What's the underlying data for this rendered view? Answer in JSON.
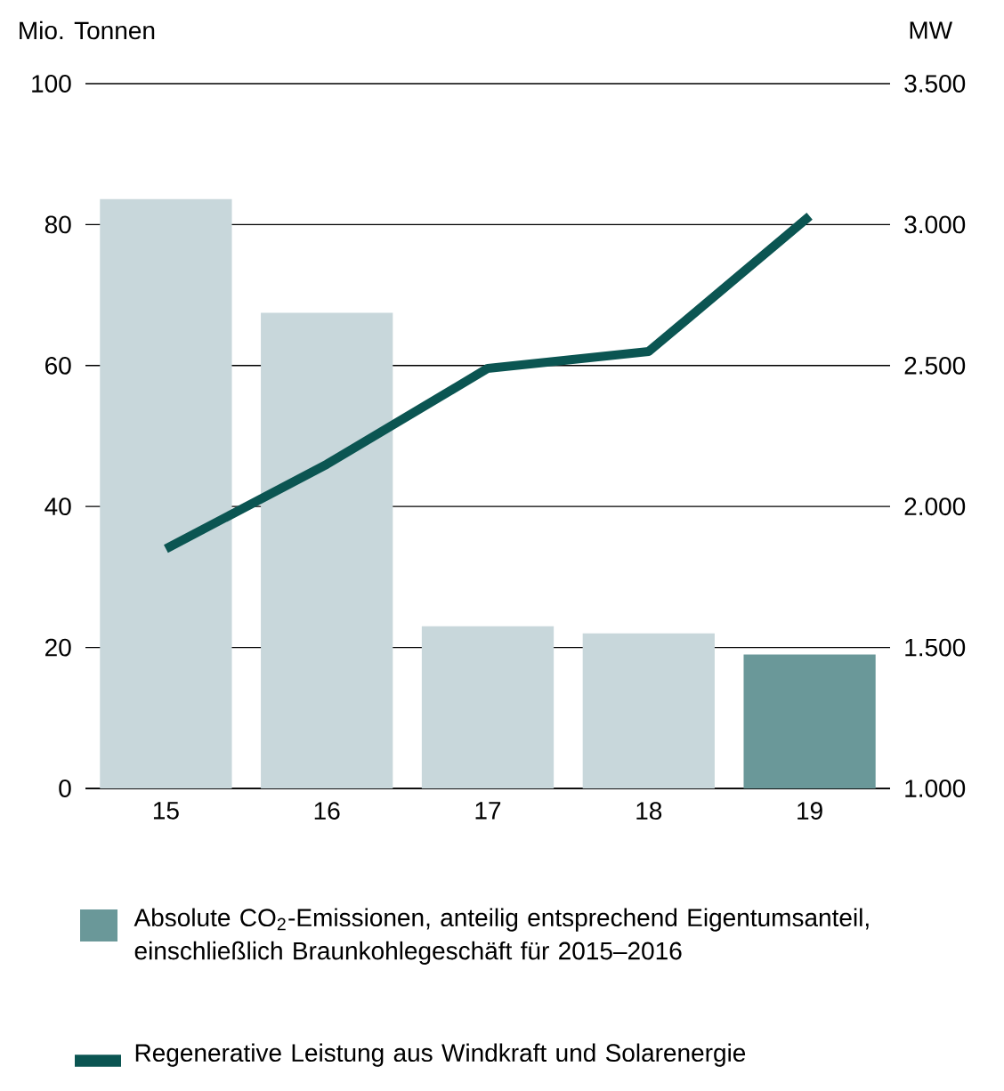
{
  "chart_data": {
    "type": "bar",
    "ylabel": "Mio. Tonnen",
    "y2label": "MW",
    "categories": [
      "15",
      "16",
      "17",
      "18",
      "19"
    ],
    "series": [
      {
        "name": "Absolute CO$_{2}$-Emissionen, anteilig entsprechend Eigentumsanteil, einschließlich Braunkohlegeschäft für 2015–2016",
        "color": "#6a9899",
        "colors": [
          "#c8d7db",
          "#c8d7db",
          "#c8d7db",
          "#c8d7db",
          "#6a9899"
        ],
        "values": [
          83.6,
          67.5,
          23,
          22,
          19
        ]
      },
      {
        "name": "Regenerative Leistung aus Windkraft und Solarenergie",
        "type": "line",
        "axis": "y2",
        "color": "#0b5552",
        "values": [
          1850,
          2150,
          2490,
          2550,
          3030
        ]
      }
    ],
    "ylim": [
      0,
      100
    ],
    "yticks": [
      0,
      20,
      40,
      60,
      80,
      100
    ],
    "y2lim": [
      1000,
      3500
    ],
    "y2ticks": [
      {
        "value": 1000,
        "label": "1.000"
      },
      {
        "value": 1500,
        "label": "1.500"
      },
      {
        "value": 2000,
        "label": "2.000"
      },
      {
        "value": 2500,
        "label": "2.500"
      },
      {
        "value": 3000,
        "label": "3.000"
      },
      {
        "value": 3500,
        "label": "3.500"
      }
    ],
    "grid": "y",
    "legend": "bottom",
    "marker": "none",
    "line_style": "solid"
  }
}
